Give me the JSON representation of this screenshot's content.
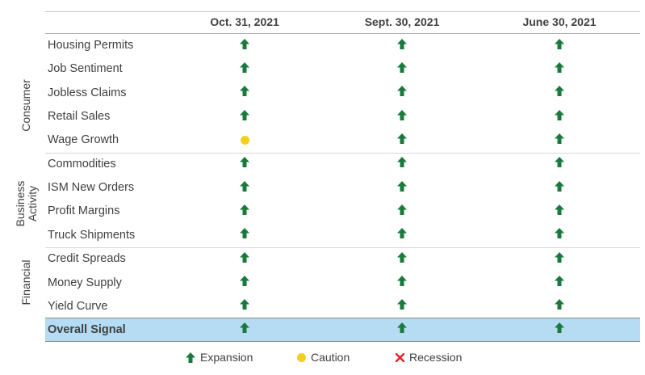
{
  "chart_data": {
    "type": "table",
    "columns": [
      "Oct. 31, 2021",
      "Sept. 30, 2021",
      "June 30, 2021"
    ],
    "groups": [
      {
        "name": "Consumer",
        "rows": [
          {
            "label": "Housing Permits",
            "signals": [
              "expansion",
              "expansion",
              "expansion"
            ]
          },
          {
            "label": "Job Sentiment",
            "signals": [
              "expansion",
              "expansion",
              "expansion"
            ]
          },
          {
            "label": "Jobless Claims",
            "signals": [
              "expansion",
              "expansion",
              "expansion"
            ]
          },
          {
            "label": "Retail Sales",
            "signals": [
              "expansion",
              "expansion",
              "expansion"
            ]
          },
          {
            "label": "Wage Growth",
            "signals": [
              "caution",
              "expansion",
              "expansion"
            ]
          }
        ]
      },
      {
        "name": "Business Activity",
        "rows": [
          {
            "label": "Commodities",
            "signals": [
              "expansion",
              "expansion",
              "expansion"
            ]
          },
          {
            "label": "ISM New Orders",
            "signals": [
              "expansion",
              "expansion",
              "expansion"
            ]
          },
          {
            "label": "Profit Margins",
            "signals": [
              "expansion",
              "expansion",
              "expansion"
            ]
          },
          {
            "label": "Truck Shipments",
            "signals": [
              "expansion",
              "expansion",
              "expansion"
            ]
          }
        ]
      },
      {
        "name": "Financial",
        "rows": [
          {
            "label": "Credit Spreads",
            "signals": [
              "expansion",
              "expansion",
              "expansion"
            ]
          },
          {
            "label": "Money Supply",
            "signals": [
              "expansion",
              "expansion",
              "expansion"
            ]
          },
          {
            "label": "Yield Curve",
            "signals": [
              "expansion",
              "expansion",
              "expansion"
            ]
          }
        ]
      }
    ],
    "overall": {
      "label": "Overall Signal",
      "signals": [
        "expansion",
        "expansion",
        "expansion"
      ]
    },
    "legend": [
      {
        "key": "expansion",
        "label": "Expansion",
        "icon": "up-arrow-icon",
        "color": "#1a7a3c"
      },
      {
        "key": "caution",
        "label": "Caution",
        "icon": "circle-icon",
        "color": "#f5cf1f"
      },
      {
        "key": "recession",
        "label": "Recession",
        "icon": "x-icon",
        "color": "#e0282e"
      }
    ],
    "colors": {
      "overall_highlight": "#b5dcf3"
    }
  }
}
